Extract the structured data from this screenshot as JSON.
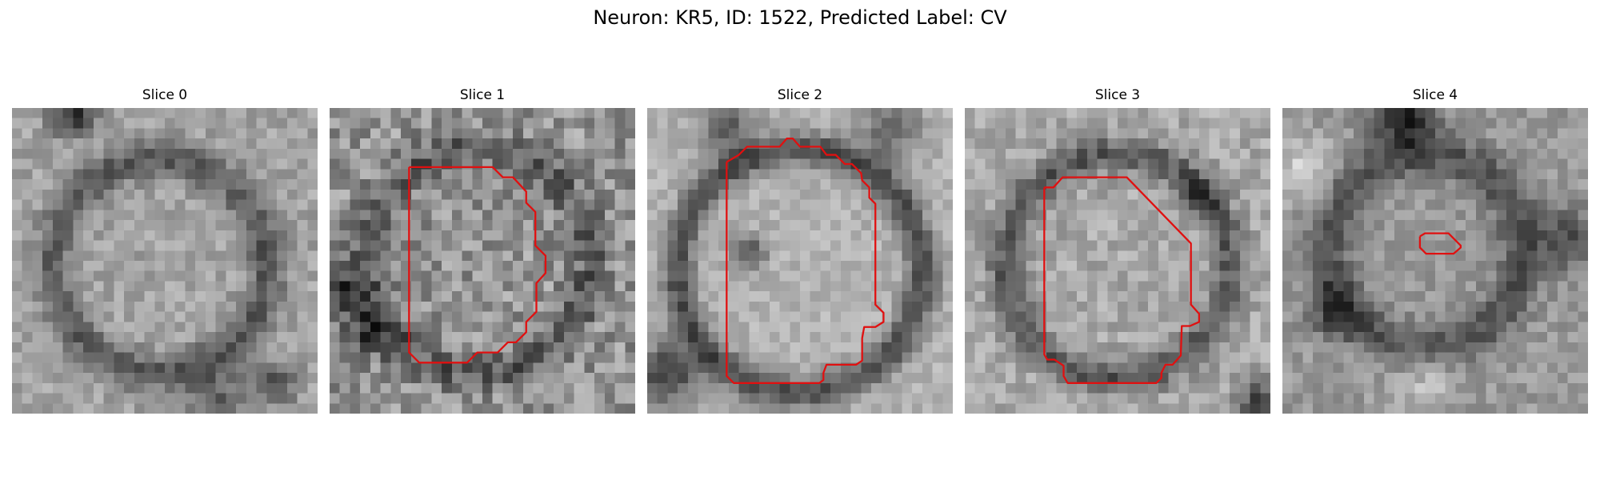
{
  "figure": {
    "title": "Neuron: KR5, ID: 1522, Predicted Label: CV"
  },
  "contour_color": "#e01010",
  "slices": [
    {
      "title": "Slice 0",
      "has_contour": false
    },
    {
      "title": "Slice 1",
      "has_contour": true
    },
    {
      "title": "Slice 2",
      "has_contour": true
    },
    {
      "title": "Slice 3",
      "has_contour": true
    },
    {
      "title": "Slice 4",
      "has_contour": true
    }
  ]
}
